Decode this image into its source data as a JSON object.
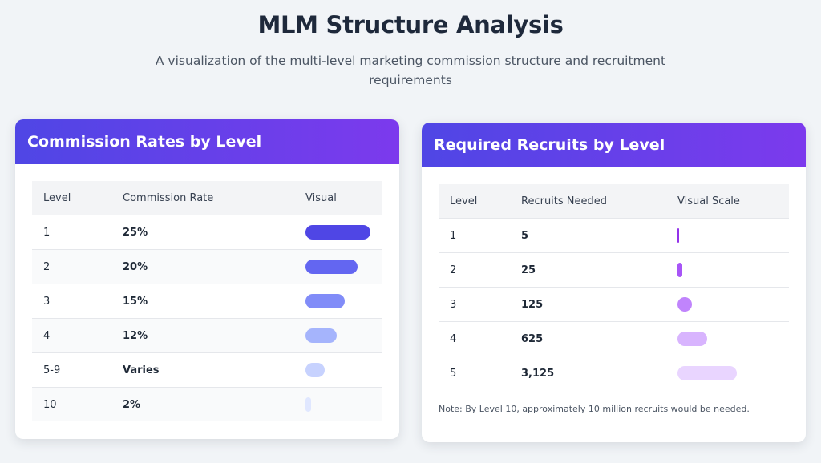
{
  "page": {
    "title": "MLM Structure Analysis",
    "subtitle": "A visualization of the multi-level marketing commission structure and recruitment requirements"
  },
  "commission_card": {
    "title": "Commission Rates by Level",
    "headers": {
      "level": "Level",
      "rate": "Commission Rate",
      "visual": "Visual"
    },
    "rows": [
      {
        "level": "1",
        "rate": "25%",
        "fraction": 1.0,
        "color": "#4f46e5"
      },
      {
        "level": "2",
        "rate": "20%",
        "fraction": 0.8,
        "color": "#6366f1"
      },
      {
        "level": "3",
        "rate": "15%",
        "fraction": 0.6,
        "color": "#818cf8"
      },
      {
        "level": "4",
        "rate": "12%",
        "fraction": 0.48,
        "color": "#a5b4fc"
      },
      {
        "level": "5-9",
        "rate": "Varies",
        "fraction": 0.3,
        "color": "#c7d2fe"
      },
      {
        "level": "10",
        "rate": "2%",
        "fraction": 0.08,
        "color": "#e0e7ff"
      }
    ]
  },
  "recruits_card": {
    "title": "Required Recruits by Level",
    "headers": {
      "level": "Level",
      "recruits": "Recruits Needed",
      "visual": "Visual Scale"
    },
    "rows": [
      {
        "level": "1",
        "recruits": "5",
        "count": 5,
        "color": "#9333ea"
      },
      {
        "level": "2",
        "recruits": "25",
        "count": 25,
        "color": "#a855f7"
      },
      {
        "level": "3",
        "recruits": "125",
        "count": 125,
        "color": "#c084fc"
      },
      {
        "level": "4",
        "recruits": "625",
        "count": 625,
        "color": "#d8b4fe"
      },
      {
        "level": "5",
        "recruits": "3,125",
        "count": 3125,
        "color": "#e9d5ff"
      }
    ],
    "note": "Note: By Level 10, approximately 10 million recruits would be needed."
  }
}
